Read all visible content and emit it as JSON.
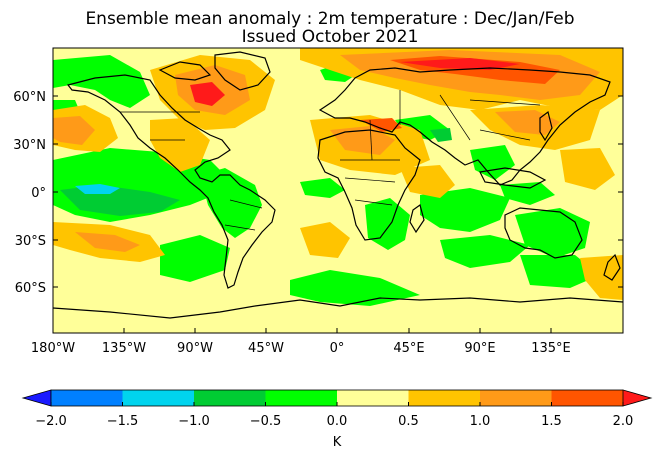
{
  "title_line1": "Ensemble mean anomaly : 2m temperature : Dec/Jan/Feb",
  "title_line2": "Issued October 2021",
  "lat_labels": [
    "60°N",
    "30°N",
    "0°",
    "30°S",
    "60°S"
  ],
  "lon_labels": [
    "180°W",
    "135°W",
    "90°W",
    "45°W",
    "0°",
    "45°E",
    "90°E",
    "135°E"
  ],
  "colorbar": {
    "unit": "K",
    "tick_labels": [
      "−2.0",
      "−1.5",
      "−1.0",
      "−0.5",
      "0.0",
      "0.5",
      "1.0",
      "1.5",
      "2.0"
    ],
    "under_color": "#1a1aff",
    "over_color": "#ff1a1a",
    "colors": [
      "#0080ff",
      "#00d4ee",
      "#00cc33",
      "#00ff00",
      "#ffff99",
      "#ffc400",
      "#ff9a18",
      "#ff5500"
    ]
  },
  "map_colors": {
    "light_yellow": "#ffff99",
    "green": "#00ff00",
    "dark_green": "#00cc33",
    "cyan": "#00d4ee",
    "amber": "#ffc400",
    "orange": "#ff9a18",
    "dark_orange": "#ff5500",
    "red": "#ff1a1a"
  }
}
